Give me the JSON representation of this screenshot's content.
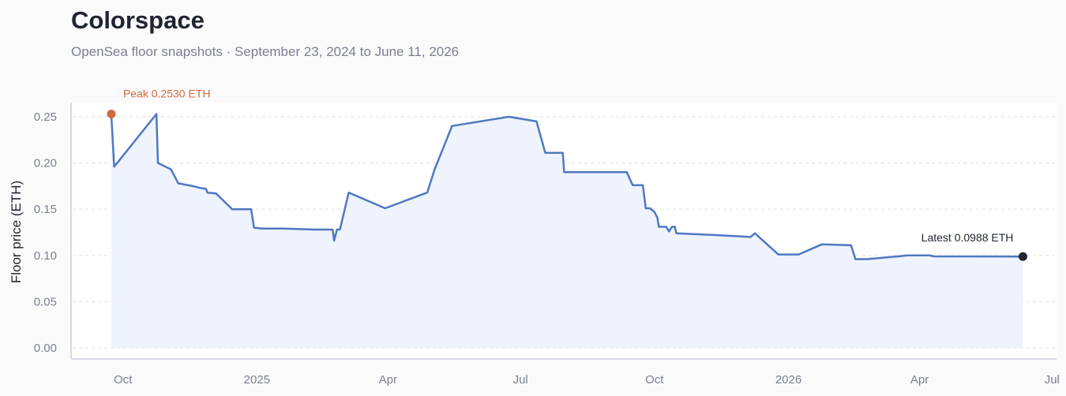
{
  "title": "Colorspace",
  "subtitle": "OpenSea floor snapshots · September 23, 2024 to June 11, 2026",
  "colors": {
    "line": "#5078c2",
    "area": "#eef3fd",
    "peak": "#d06a3f",
    "latest": "#1f2430",
    "grid": "#e3e5ea",
    "axis": "#d6d8e6"
  },
  "chart_data": {
    "type": "line",
    "title": "Colorspace",
    "subtitle": "OpenSea floor snapshots · September 23, 2024 to June 11, 2026",
    "xlabel": "",
    "ylabel": "Floor price (ETH)",
    "ylim": [
      0,
      0.26
    ],
    "xlim": [
      "2024-08-28",
      "2026-07-03"
    ],
    "yticks": [
      0,
      0.05,
      0.1,
      0.15,
      0.2,
      0.25
    ],
    "ytick_labels": [
      "0.00",
      "0.05",
      "0.10",
      "0.15",
      "0.20",
      "0.25"
    ],
    "xticks": [
      {
        "date": "2024-10-01",
        "label": "Oct"
      },
      {
        "date": "2025-01-01",
        "label": "2025"
      },
      {
        "date": "2025-04-01",
        "label": "Apr"
      },
      {
        "date": "2025-07-01",
        "label": "Jul"
      },
      {
        "date": "2025-10-01",
        "label": "Oct"
      },
      {
        "date": "2026-01-01",
        "label": "2026"
      },
      {
        "date": "2026-04-01",
        "label": "Apr"
      },
      {
        "date": "2026-07-01",
        "label": "Jul"
      }
    ],
    "grid": "horizontal",
    "series": [
      {
        "points": [
          [
            "2024-09-23",
            0.253
          ],
          [
            "2024-09-25",
            0.196
          ],
          [
            "2024-10-24",
            0.253
          ],
          [
            "2024-10-25",
            0.2
          ],
          [
            "2024-11-03",
            0.193
          ],
          [
            "2024-11-08",
            0.178
          ],
          [
            "2024-11-18",
            0.175
          ],
          [
            "2024-11-23",
            0.173
          ],
          [
            "2024-11-27",
            0.172
          ],
          [
            "2024-11-28",
            0.168
          ],
          [
            "2024-12-04",
            0.167
          ],
          [
            "2024-12-15",
            0.15
          ],
          [
            "2024-12-28",
            0.15
          ],
          [
            "2024-12-30",
            0.13
          ],
          [
            "2025-01-05",
            0.129
          ],
          [
            "2025-01-20",
            0.129
          ],
          [
            "2025-02-10",
            0.128
          ],
          [
            "2025-02-22",
            0.128
          ],
          [
            "2025-02-23",
            0.116
          ],
          [
            "2025-02-25",
            0.128
          ],
          [
            "2025-02-27",
            0.128
          ],
          [
            "2025-03-05",
            0.168
          ],
          [
            "2025-03-30",
            0.151
          ],
          [
            "2025-04-28",
            0.168
          ],
          [
            "2025-05-03",
            0.193
          ],
          [
            "2025-05-15",
            0.24
          ],
          [
            "2025-06-23",
            0.25
          ],
          [
            "2025-07-12",
            0.245
          ],
          [
            "2025-07-18",
            0.211
          ],
          [
            "2025-07-30",
            0.211
          ],
          [
            "2025-07-31",
            0.19
          ],
          [
            "2025-09-12",
            0.19
          ],
          [
            "2025-09-16",
            0.176
          ],
          [
            "2025-09-23",
            0.176
          ],
          [
            "2025-09-25",
            0.151
          ],
          [
            "2025-09-28",
            0.151
          ],
          [
            "2025-10-01",
            0.147
          ],
          [
            "2025-10-03",
            0.141
          ],
          [
            "2025-10-04",
            0.131
          ],
          [
            "2025-10-09",
            0.131
          ],
          [
            "2025-10-11",
            0.126
          ],
          [
            "2025-10-13",
            0.131
          ],
          [
            "2025-10-15",
            0.131
          ],
          [
            "2025-10-16",
            0.124
          ],
          [
            "2025-11-12",
            0.122
          ],
          [
            "2025-12-06",
            0.12
          ],
          [
            "2025-12-09",
            0.124
          ],
          [
            "2025-12-25",
            0.101
          ],
          [
            "2026-01-08",
            0.101
          ],
          [
            "2026-01-24",
            0.112
          ],
          [
            "2026-02-13",
            0.111
          ],
          [
            "2026-02-16",
            0.096
          ],
          [
            "2026-02-24",
            0.096
          ],
          [
            "2026-03-24",
            0.1
          ],
          [
            "2026-04-08",
            0.1
          ],
          [
            "2026-04-11",
            0.099
          ],
          [
            "2026-06-11",
            0.0988
          ]
        ]
      }
    ],
    "annotations": [
      {
        "kind": "peak",
        "date": "2024-09-23",
        "value": 0.253,
        "text": "Peak 0.2530 ETH"
      },
      {
        "kind": "latest",
        "date": "2026-06-11",
        "value": 0.0988,
        "text": "Latest 0.0988 ETH"
      }
    ]
  }
}
